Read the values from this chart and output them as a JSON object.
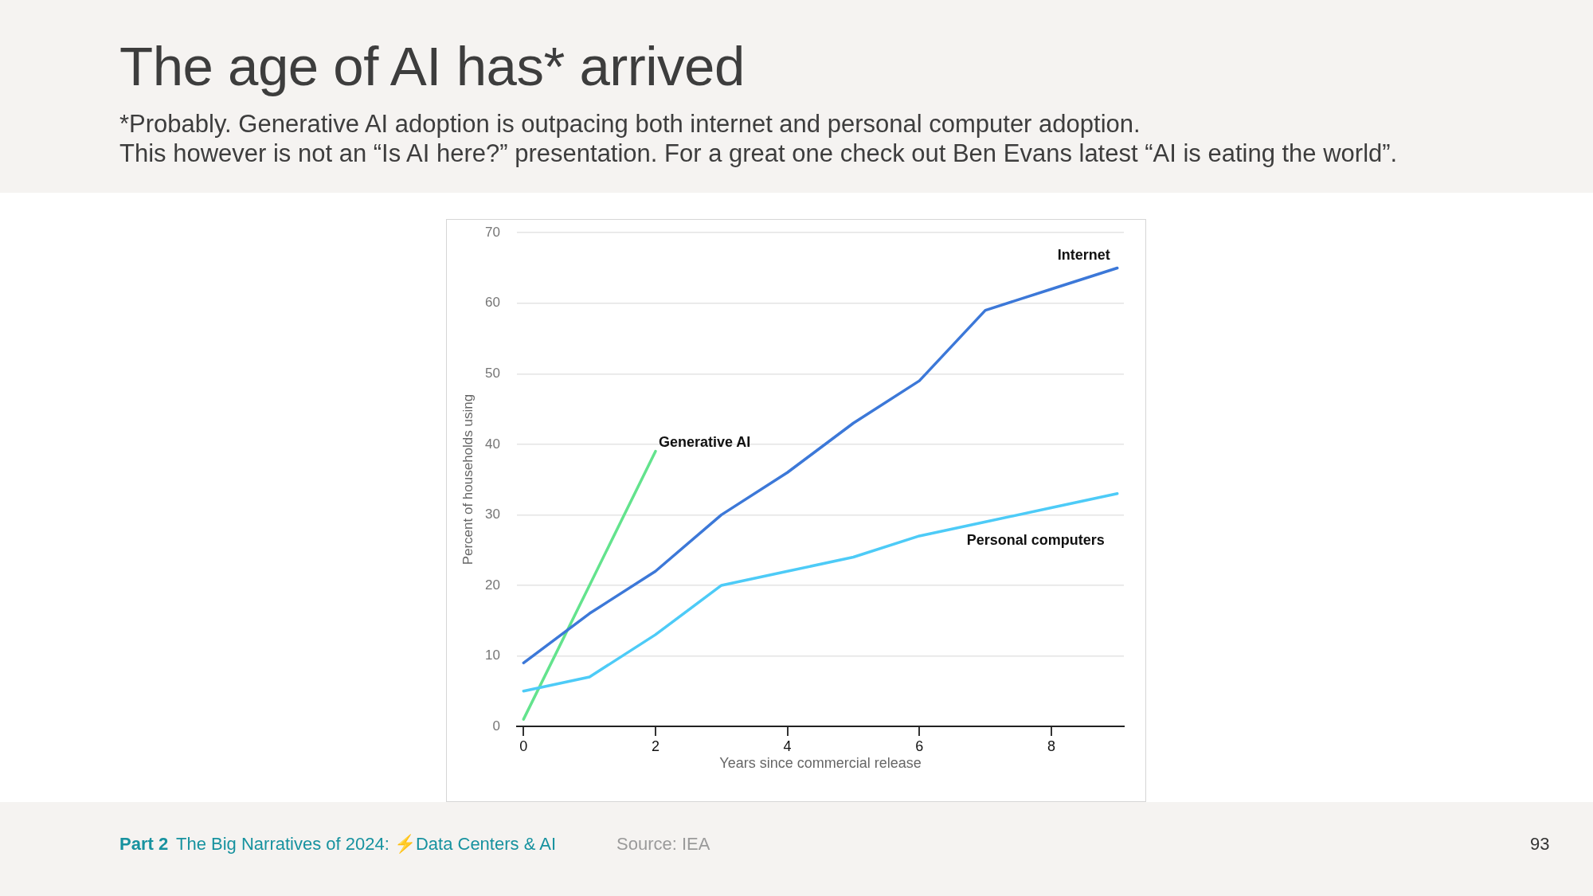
{
  "chart_data": {
    "type": "line",
    "title": "The age of AI has* arrived",
    "subtitle": "*Probably. Generative AI adoption is outpacing both internet and personal computer adoption.\nThis however is not an “Is AI here?” presentation. For a great one check out Ben Evans latest “AI is eating the world”.",
    "xlabel": "Years since commercial release",
    "ylabel": "Percent of households using",
    "x": [
      0,
      1,
      2,
      3,
      4,
      5,
      6,
      7,
      8,
      9
    ],
    "series": [
      {
        "name": "Internet",
        "color": "#3c78d8",
        "values": [
          9,
          16,
          22,
          30,
          36,
          43,
          49,
          59,
          62,
          65
        ]
      },
      {
        "name": "Personal computers",
        "color": "#4dcbf7",
        "values": [
          5,
          7,
          13,
          20,
          22,
          24,
          27,
          29,
          31,
          33
        ]
      },
      {
        "name": "Generative AI",
        "color": "#63e38d",
        "x": [
          0,
          1,
          2
        ],
        "values": [
          1,
          20,
          39
        ]
      }
    ],
    "xlim": [
      -0.1,
      9.1
    ],
    "xticks": [
      0,
      2,
      4,
      6,
      8
    ],
    "ylim": [
      0,
      70
    ],
    "yticks": [
      0,
      10,
      20,
      30,
      40,
      50,
      60,
      70
    ],
    "grid": "y",
    "line_style": "solid",
    "annotations": [
      "Part 2",
      "The Big Narratives of 2024: ⚡Data Centers & AI",
      "Source: IEA",
      "93"
    ]
  }
}
